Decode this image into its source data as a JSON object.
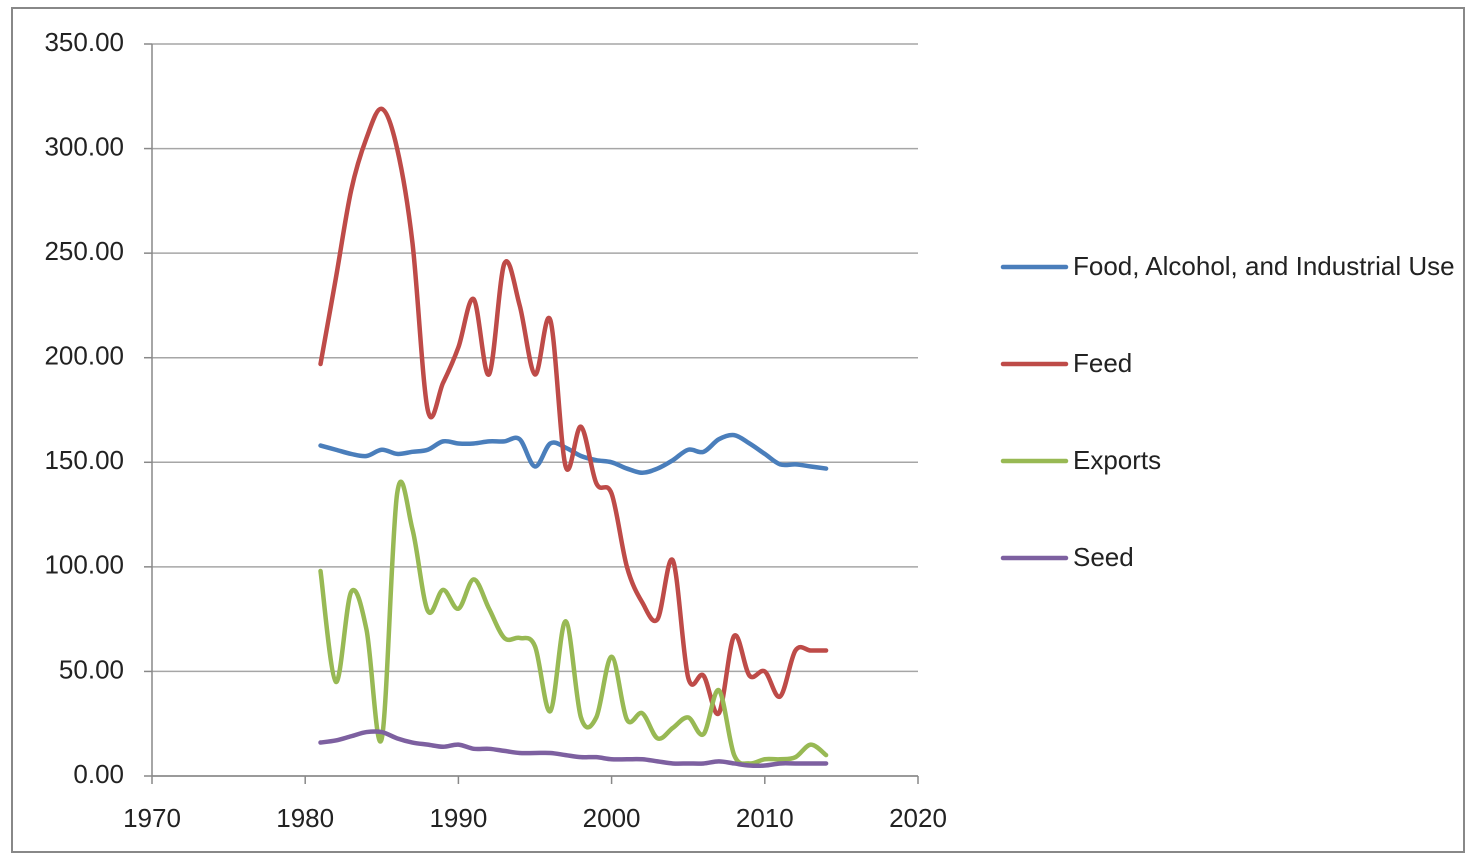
{
  "chart_data": {
    "type": "line",
    "x": [
      1981,
      1982,
      1983,
      1984,
      1985,
      1986,
      1987,
      1988,
      1989,
      1990,
      1991,
      1992,
      1993,
      1994,
      1995,
      1996,
      1997,
      1998,
      1999,
      2000,
      2001,
      2002,
      2003,
      2004,
      2005,
      2006,
      2007,
      2008,
      2009,
      2010,
      2011,
      2012,
      2013,
      2014
    ],
    "series": [
      {
        "name": "Food, Alcohol, and Industrial Use",
        "color": "#4a7ebb",
        "values": [
          158,
          156,
          154,
          153,
          156,
          154,
          155,
          156,
          160,
          159,
          159,
          160,
          160,
          161,
          148,
          159,
          157,
          153,
          151,
          150,
          147,
          145,
          147,
          151,
          156,
          155,
          161,
          163,
          159,
          154,
          149,
          149,
          148,
          147
        ]
      },
      {
        "name": "Feed",
        "color": "#be4b48",
        "values": [
          197,
          238,
          280,
          305,
          319,
          300,
          255,
          175,
          188,
          205,
          228,
          192,
          245,
          225,
          192,
          218,
          148,
          167,
          140,
          135,
          100,
          83,
          75,
          103,
          47,
          48,
          30,
          67,
          48,
          50,
          38,
          60,
          60,
          60
        ]
      },
      {
        "name": "Exports",
        "color": "#98b954",
        "values": [
          98,
          45,
          88,
          70,
          18,
          135,
          118,
          79,
          89,
          80,
          94,
          80,
          66,
          66,
          62,
          31,
          74,
          28,
          28,
          57,
          27,
          30,
          18,
          23,
          28,
          20,
          41,
          10,
          6,
          8,
          8,
          9,
          15,
          10
        ]
      },
      {
        "name": "Seed",
        "color": "#7d60a0",
        "values": [
          16,
          17,
          19,
          21,
          21,
          18,
          16,
          15,
          14,
          15,
          13,
          13,
          12,
          11,
          11,
          11,
          10,
          9,
          9,
          8,
          8,
          8,
          7,
          6,
          6,
          6,
          7,
          6,
          5,
          5,
          6,
          6,
          6,
          6
        ]
      }
    ],
    "xlim": [
      1970,
      2020
    ],
    "xticks": [
      1970,
      1980,
      1990,
      2000,
      2010,
      2020
    ],
    "ylim": [
      0,
      350
    ],
    "yticks": [
      {
        "value": 0,
        "label": "0.00"
      },
      {
        "value": 50,
        "label": "50.00"
      },
      {
        "value": 100,
        "label": "100.00"
      },
      {
        "value": 150,
        "label": "150.00"
      },
      {
        "value": 200,
        "label": "200.00"
      },
      {
        "value": 250,
        "label": "250.00"
      },
      {
        "value": 300,
        "label": "300.00"
      },
      {
        "value": 350,
        "label": "350.00"
      }
    ],
    "grid": true,
    "legend": "right"
  }
}
